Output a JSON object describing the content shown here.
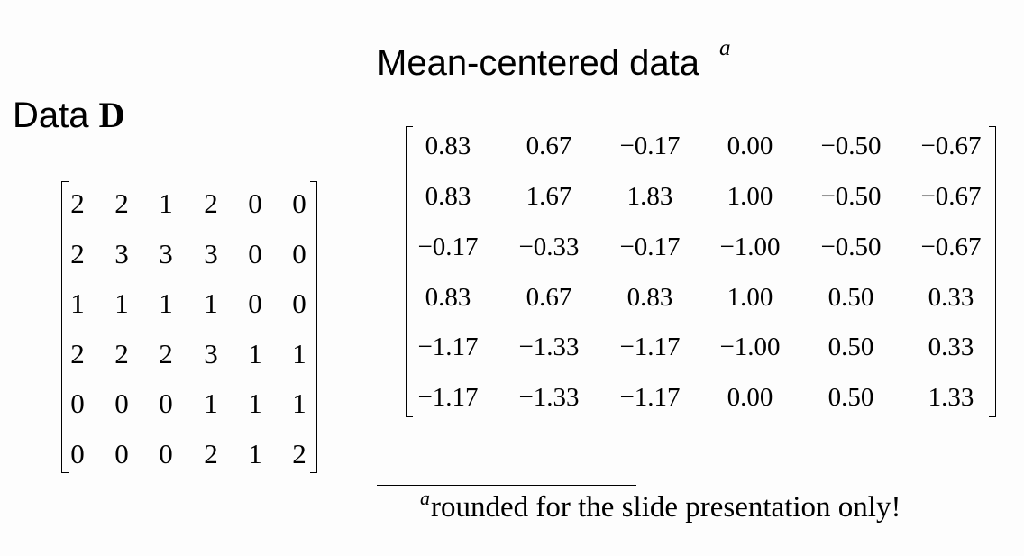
{
  "left": {
    "title_prefix": "Data",
    "title_symbol": "D",
    "matrix": [
      [
        "2",
        "2",
        "1",
        "2",
        "0",
        "0"
      ],
      [
        "2",
        "3",
        "3",
        "3",
        "0",
        "0"
      ],
      [
        "1",
        "1",
        "1",
        "1",
        "0",
        "0"
      ],
      [
        "2",
        "2",
        "2",
        "3",
        "1",
        "1"
      ],
      [
        "0",
        "0",
        "0",
        "1",
        "1",
        "1"
      ],
      [
        "0",
        "0",
        "0",
        "2",
        "1",
        "2"
      ]
    ]
  },
  "right": {
    "title": "Mean-centered data",
    "title_note_mark": "a",
    "matrix": [
      [
        "0.83",
        "0.67",
        "−0.17",
        "0.00",
        "−0.50",
        "−0.67"
      ],
      [
        "0.83",
        "1.67",
        "1.83",
        "1.00",
        "−0.50",
        "−0.67"
      ],
      [
        "−0.17",
        "−0.33",
        "−0.17",
        "−1.00",
        "−0.50",
        "−0.67"
      ],
      [
        "0.83",
        "0.67",
        "0.83",
        "1.00",
        "0.50",
        "0.33"
      ],
      [
        "−1.17",
        "−1.33",
        "−1.17",
        "−1.00",
        "0.50",
        "0.33"
      ],
      [
        "−1.17",
        "−1.33",
        "−1.17",
        "0.00",
        "0.50",
        "1.33"
      ]
    ]
  },
  "footnote": {
    "mark": "a",
    "text": "rounded for the slide presentation only!"
  }
}
